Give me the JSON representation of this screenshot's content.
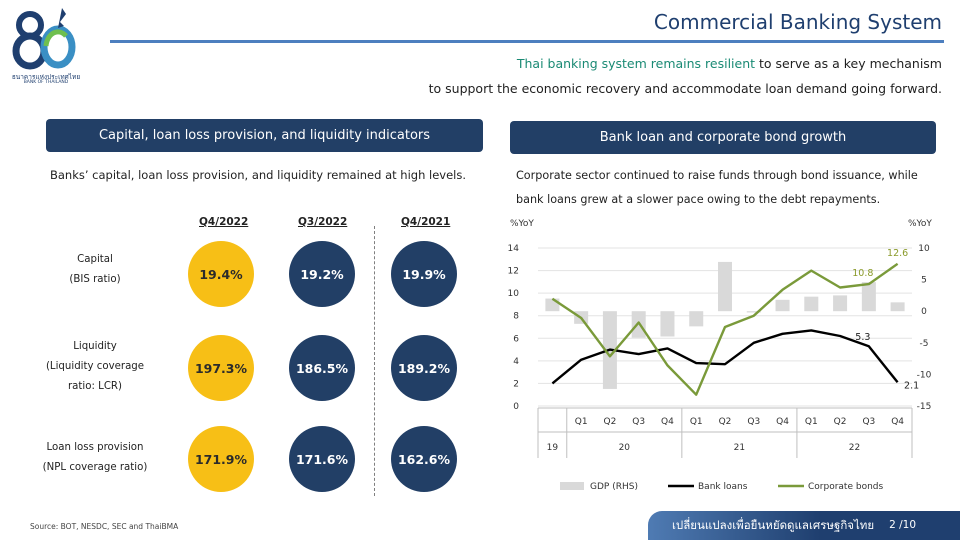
{
  "header": {
    "title": "Commercial Banking System",
    "subtitle_highlight": "Thai banking system remains resilient",
    "subtitle_rest": " to serve as a key mechanism",
    "subtitle_line2": "to support the economic recovery and accommodate loan demand going forward."
  },
  "logo": {
    "name_thai": "ธนาคารแห่งประเทศไทย",
    "name_en": "BANK OF THAILAND"
  },
  "left_panel": {
    "title": "Capital, loan loss provision, and liquidity indicators",
    "intro": "Banks’ capital, loan loss provision, and liquidity remained at high levels.",
    "columns": [
      "Q4/2022",
      "Q3/2022",
      "Q4/2021"
    ],
    "rows": [
      {
        "label_line1": "Capital",
        "label_line2": "(BIS ratio)",
        "label_line3": "",
        "values": [
          "19.4%",
          "19.2%",
          "19.9%"
        ]
      },
      {
        "label_line1": "Liquidity",
        "label_line2": "(Liquidity coverage",
        "label_line3": "ratio: LCR)",
        "values": [
          "197.3%",
          "186.5%",
          "189.2%"
        ]
      },
      {
        "label_line1": "Loan loss provision",
        "label_line2": "(NPL coverage ratio)",
        "label_line3": "",
        "values": [
          "171.9%",
          "171.6%",
          "162.6%"
        ]
      }
    ]
  },
  "right_panel": {
    "title": "Bank loan and corporate bond growth",
    "intro_line1": "Corporate sector continued to raise funds through bond issuance, while",
    "intro_line2": "bank loans grew at a slower pace owing to the debt repayments."
  },
  "chart_data": {
    "type": "line",
    "left_axis_label": "%YoY",
    "right_axis_label": "%YoY",
    "left_ylim": [
      0,
      14
    ],
    "left_ticks": [
      "0",
      "2",
      "4",
      "6",
      "8",
      "10",
      "12",
      "14"
    ],
    "right_ylim": [
      -15,
      10
    ],
    "right_ticks": [
      "-15",
      "-10",
      "-5",
      "0",
      "5",
      "10"
    ],
    "quarters": [
      "",
      "Q1",
      "Q2",
      "Q3",
      "Q4",
      "Q1",
      "Q2",
      "Q3",
      "Q4",
      "Q1",
      "Q2",
      "Q3",
      "Q4"
    ],
    "years": [
      "19",
      "20",
      "21",
      "22"
    ],
    "series": [
      {
        "name": "GDP (RHS)",
        "kind": "bar",
        "axis": "right",
        "color": "#d9d9d9",
        "values": [
          2.0,
          -2.0,
          -12.3,
          -4.2,
          -4.0,
          -2.4,
          7.8,
          -0.2,
          1.8,
          2.3,
          2.5,
          4.6,
          1.4
        ]
      },
      {
        "name": "Bank loans",
        "kind": "line",
        "axis": "left",
        "color": "#000000",
        "values": [
          2.0,
          4.1,
          5.0,
          4.6,
          5.1,
          3.8,
          3.7,
          5.6,
          6.4,
          6.7,
          6.2,
          5.3,
          2.1
        ]
      },
      {
        "name": "Corporate bonds",
        "kind": "line",
        "axis": "left",
        "color": "#7a9a3a",
        "values": [
          9.5,
          7.8,
          4.4,
          7.4,
          3.6,
          1.0,
          7.0,
          8.0,
          10.3,
          12.0,
          10.5,
          10.8,
          12.6
        ]
      }
    ],
    "annotations": [
      {
        "series": "Bank loans",
        "index": 11,
        "text": "5.3"
      },
      {
        "series": "Bank loans",
        "index": 12,
        "text": "2.1"
      },
      {
        "series": "Corporate bonds",
        "index": 11,
        "text": "10.8"
      },
      {
        "series": "Corporate bonds",
        "index": 12,
        "text": "12.6"
      }
    ],
    "legend_position": "bottom",
    "grid": true
  },
  "footer": {
    "source": "Source: BOT, NESDC, SEC and ThaiBMA",
    "tagline": "เปลี่ยนแปลงเพื่อยืนหยัดดูแลเศรษฐกิจไทย",
    "page": "2 /10"
  }
}
